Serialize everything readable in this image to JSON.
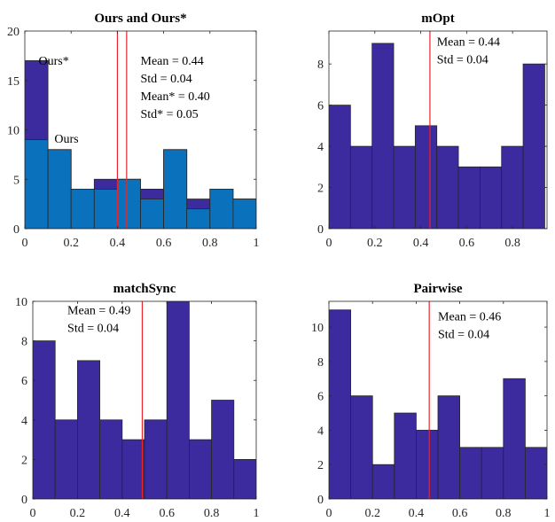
{
  "chart_data": [
    {
      "type": "bar",
      "title": "Ours and Ours*",
      "xlim": [
        0,
        1
      ],
      "ylim": [
        0,
        20
      ],
      "xticks": [
        0,
        0.2,
        0.4,
        0.6,
        0.8,
        1
      ],
      "xtick_labels": [
        "0",
        "0.2",
        "0.4",
        "0.6",
        "0.8",
        "1"
      ],
      "yticks": [
        0,
        5,
        10,
        15,
        20
      ],
      "ytick_labels": [
        "0",
        "5",
        "10",
        "15",
        "20"
      ],
      "bin_edges": [
        0,
        0.1,
        0.2,
        0.3,
        0.4,
        0.5,
        0.6,
        0.7,
        0.8,
        0.9,
        1.0
      ],
      "series": [
        {
          "name": "Ours*",
          "color": "#3b2b9f",
          "values": [
            17,
            8,
            4,
            5,
            5,
            4,
            8,
            3,
            4,
            3
          ]
        },
        {
          "name": "Ours",
          "color": "#0a72bd",
          "values": [
            9,
            8,
            4,
            4,
            5,
            3,
            8,
            2,
            4,
            3
          ]
        }
      ],
      "mean_lines": [
        0.4,
        0.44
      ],
      "line_color": "#e8262b",
      "series_labels": [
        {
          "text": "Ours*",
          "x": 0.125,
          "y": 16.6
        },
        {
          "text": "Ours",
          "x": 0.18,
          "y": 8.7
        }
      ],
      "stats": {
        "x": 0.5,
        "y_top": 16.6,
        "lines": [
          "Mean = 0.44",
          "Std = 0.04",
          "Mean* = 0.40",
          "Std* = 0.05"
        ]
      }
    },
    {
      "type": "bar",
      "title": "mOpt",
      "xlim": [
        0,
        0.95
      ],
      "ylim": [
        0,
        9.6
      ],
      "xticks": [
        0,
        0.2,
        0.4,
        0.6,
        0.8
      ],
      "xtick_labels": [
        "0",
        "0.2",
        "0.4",
        "0.6",
        "0.8"
      ],
      "yticks": [
        0,
        2,
        4,
        6,
        8
      ],
      "ytick_labels": [
        "0",
        "2",
        "4",
        "6",
        "8"
      ],
      "bin_edges": [
        0,
        0.094,
        0.188,
        0.282,
        0.376,
        0.47,
        0.564,
        0.658,
        0.752,
        0.846,
        0.94
      ],
      "series": [
        {
          "color": "#3b2b9f",
          "values": [
            6,
            4,
            9,
            4,
            5,
            4,
            3,
            3,
            4,
            8
          ]
        }
      ],
      "mean_lines": [
        0.44
      ],
      "line_color": "#e8262b",
      "stats": {
        "x": 0.47,
        "y_top": 8.9,
        "lines": [
          "Mean = 0.44",
          "Std = 0.04"
        ]
      }
    },
    {
      "type": "bar",
      "title": "matchSync",
      "xlim": [
        0,
        1
      ],
      "ylim": [
        0,
        10
      ],
      "xticks": [
        0,
        0.2,
        0.4,
        0.6,
        0.8,
        1
      ],
      "xtick_labels": [
        "0",
        "0.2",
        "0.4",
        "0.6",
        "0.8",
        "1"
      ],
      "yticks": [
        0,
        2,
        4,
        6,
        8,
        10
      ],
      "ytick_labels": [
        "0",
        "2",
        "4",
        "6",
        "8",
        "10"
      ],
      "bin_edges": [
        0,
        0.1,
        0.2,
        0.3,
        0.4,
        0.5,
        0.6,
        0.7,
        0.8,
        0.9,
        1.0
      ],
      "series": [
        {
          "color": "#3b2b9f",
          "values": [
            8,
            4,
            7,
            4,
            3,
            4,
            10,
            3,
            5,
            2
          ]
        }
      ],
      "mean_lines": [
        0.49
      ],
      "line_color": "#e8262b",
      "stats": {
        "x": 0.155,
        "y_top": 9.35,
        "lines": [
          "Mean = 0.49",
          "Std = 0.04"
        ]
      }
    },
    {
      "type": "bar",
      "title": "Pairwise",
      "xlim": [
        0,
        1
      ],
      "ylim": [
        0,
        11.5
      ],
      "xticks": [
        0,
        0.2,
        0.4,
        0.6,
        0.8,
        1
      ],
      "xtick_labels": [
        "0",
        "0.2",
        "0.4",
        "0.6",
        "0.8",
        "1"
      ],
      "yticks": [
        0,
        2,
        4,
        6,
        8,
        10
      ],
      "ytick_labels": [
        "0",
        "2",
        "4",
        "6",
        "8",
        "10"
      ],
      "bin_edges": [
        0,
        0.1,
        0.2,
        0.3,
        0.4,
        0.5,
        0.6,
        0.7,
        0.8,
        0.9,
        1.0
      ],
      "series": [
        {
          "color": "#3b2b9f",
          "values": [
            11,
            6,
            2,
            5,
            4,
            6,
            3,
            3,
            7,
            3
          ]
        }
      ],
      "mean_lines": [
        0.46
      ],
      "line_color": "#e8262b",
      "stats": {
        "x": 0.5,
        "y_top": 10.4,
        "lines": [
          "Mean = 0.46",
          "Std = 0.04"
        ]
      }
    }
  ]
}
